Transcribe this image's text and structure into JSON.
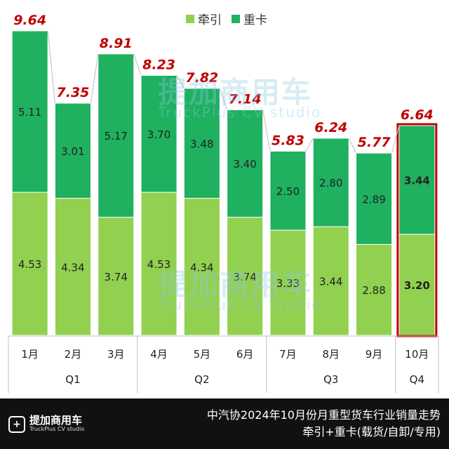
{
  "legend": {
    "tow_label": "牵引",
    "heavy_label": "重卡",
    "tow_color": "#92d050",
    "heavy_color": "#1fb060"
  },
  "watermark": {
    "name": "提加商用车",
    "sub": "TruckPlus CV studio"
  },
  "footer": {
    "logo_name": "提加商用车",
    "logo_sub": "TruckPlus CV studio",
    "title_line1": "中汽协2024年10月份月重型货车行业销量走势",
    "title_line2": "牵引+重卡(载货/自卸/专用)"
  },
  "chart_data": {
    "type": "bar",
    "stacked": true,
    "categories": [
      "1月",
      "2月",
      "3月",
      "4月",
      "5月",
      "6月",
      "7月",
      "8月",
      "9月",
      "10月"
    ],
    "quarters": [
      {
        "label": "Q1",
        "from": 0,
        "to": 2
      },
      {
        "label": "Q2",
        "from": 3,
        "to": 5
      },
      {
        "label": "Q3",
        "from": 6,
        "to": 8
      },
      {
        "label": "Q4",
        "from": 9,
        "to": 9
      }
    ],
    "series": [
      {
        "name": "牵引",
        "values": [
          4.53,
          4.34,
          3.74,
          4.53,
          4.34,
          3.74,
          3.33,
          3.44,
          2.88,
          3.2
        ]
      },
      {
        "name": "重卡",
        "values": [
          5.11,
          3.01,
          5.17,
          3.7,
          3.48,
          3.4,
          2.5,
          2.8,
          2.89,
          3.44
        ]
      }
    ],
    "totals": [
      9.64,
      7.35,
      8.91,
      8.23,
      7.82,
      7.14,
      5.83,
      6.24,
      5.77,
      6.64
    ],
    "total_color": "#c00000",
    "highlight_index": 9,
    "highlight_color": "#c00000",
    "ylim": [
      0,
      9.64
    ],
    "grid": false,
    "legend_position": "top-center"
  }
}
